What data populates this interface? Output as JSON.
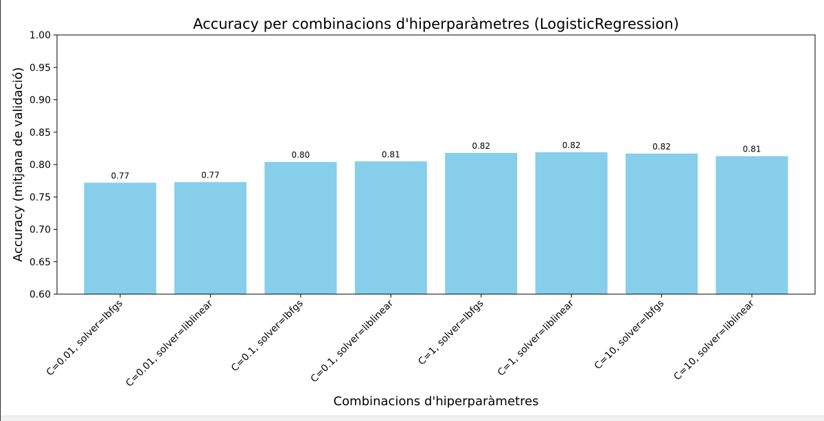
{
  "chart_data": {
    "type": "bar",
    "title": "Accuracy per combinacions d'hiperparàmetres (LogisticRegression)",
    "xlabel": "Combinacions d'hiperparàmetres",
    "ylabel": "Accuracy (mitjana de validació)",
    "ylim": [
      0.6,
      1.0
    ],
    "yticks": [
      "0.60",
      "0.65",
      "0.70",
      "0.75",
      "0.80",
      "0.85",
      "0.90",
      "0.95",
      "1.00"
    ],
    "categories": [
      "C=0.01, solver=lbfgs",
      "C=0.01, solver=liblinear",
      "C=0.1, solver=lbfgs",
      "C=0.1, solver=liblinear",
      "C=1, solver=lbfgs",
      "C=1, solver=liblinear",
      "C=10, solver=lbfgs",
      "C=10, solver=liblinear"
    ],
    "values": [
      0.772,
      0.773,
      0.804,
      0.805,
      0.818,
      0.819,
      0.817,
      0.813
    ],
    "value_labels": [
      "0.77",
      "0.77",
      "0.80",
      "0.81",
      "0.82",
      "0.82",
      "0.82",
      "0.81"
    ],
    "bar_color": "#87CEEB",
    "grid": false,
    "legend": "none"
  }
}
